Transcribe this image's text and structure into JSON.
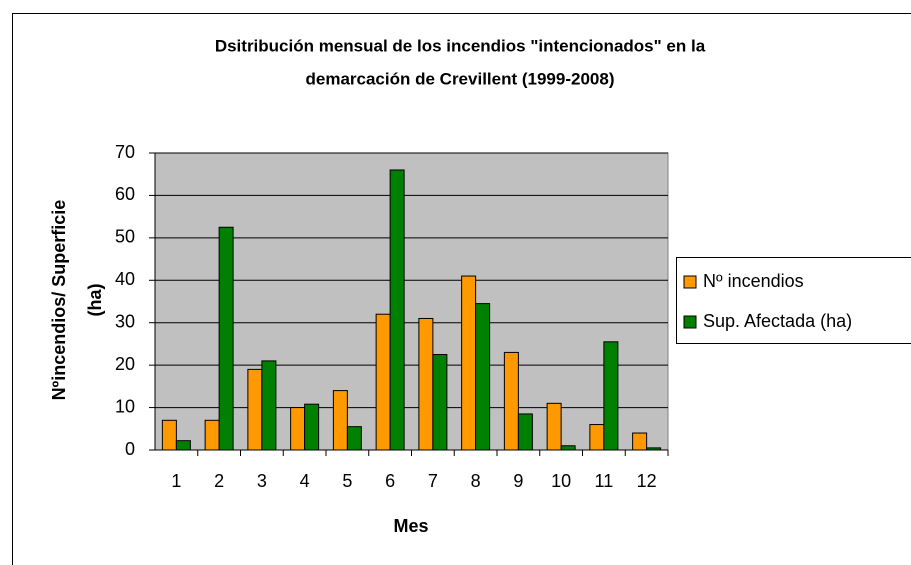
{
  "chart_data": {
    "type": "bar",
    "title": [
      "Dsitribución mensual de los incendios \"intencionados\" en la",
      "demarcación de Crevillent (1999-2008)"
    ],
    "y_label": [
      "Nºincendios/ Superficie",
      "(ha)"
    ],
    "x_label": "Mes",
    "categories": [
      "1",
      "2",
      "3",
      "4",
      "5",
      "6",
      "7",
      "8",
      "9",
      "10",
      "11",
      "12"
    ],
    "series": [
      {
        "name": "Nº incendios",
        "color": "#ff9900",
        "values": [
          7,
          7,
          19,
          10,
          14,
          32,
          31,
          41,
          23,
          11,
          6,
          4
        ]
      },
      {
        "name": "Sup. Afectada (ha)",
        "color": "#008000",
        "values": [
          2.2,
          52.5,
          21,
          10.8,
          5.5,
          66,
          22.5,
          34.5,
          8.5,
          1,
          25.5,
          0.5
        ]
      }
    ],
    "ylim": [
      0,
      70
    ],
    "yticks": [
      0,
      10,
      20,
      30,
      40,
      50,
      60,
      70
    ],
    "grid": true,
    "legend": "right"
  }
}
